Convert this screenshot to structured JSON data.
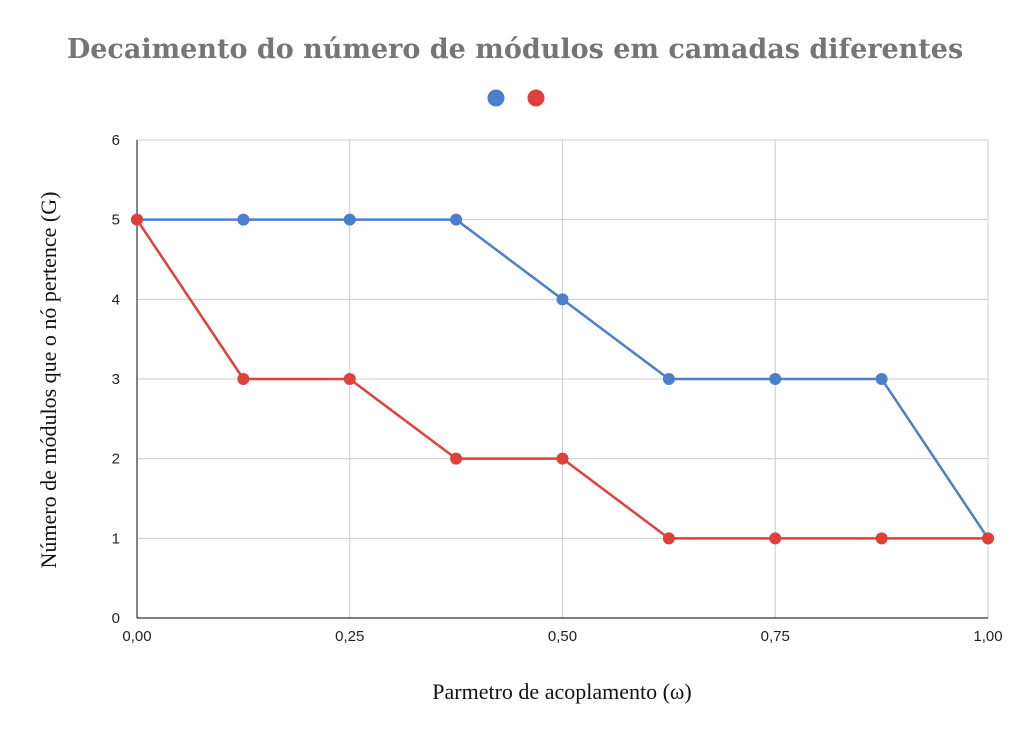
{
  "chart_data": {
    "type": "line",
    "title": "Decaimento do número de módulos em camadas diferentes",
    "xlabel": "Parmetro de acoplamento (ω)",
    "ylabel": "Número de módulos que o nó pertence (G)",
    "x": [
      0.0,
      0.125,
      0.25,
      0.375,
      0.5,
      0.625,
      0.75,
      0.875,
      1.0
    ],
    "xlim": [
      0,
      1
    ],
    "ylim": [
      0,
      6
    ],
    "x_ticks": [
      {
        "value": 0.0,
        "label": "0,00"
      },
      {
        "value": 0.25,
        "label": "0,25"
      },
      {
        "value": 0.5,
        "label": "0,50"
      },
      {
        "value": 0.75,
        "label": "0,75"
      },
      {
        "value": 1.0,
        "label": "1,00"
      }
    ],
    "y_ticks": [
      {
        "value": 0,
        "label": "0"
      },
      {
        "value": 1,
        "label": "1"
      },
      {
        "value": 2,
        "label": "2"
      },
      {
        "value": 3,
        "label": "3"
      },
      {
        "value": 4,
        "label": "4"
      },
      {
        "value": 5,
        "label": "5"
      },
      {
        "value": 6,
        "label": "6"
      }
    ],
    "grid": true,
    "legend_position": "top",
    "series": [
      {
        "color": "#4a7fcb",
        "values": [
          5,
          5,
          5,
          5,
          4,
          3,
          3,
          3,
          1
        ]
      },
      {
        "color": "#e0403a",
        "values": [
          5,
          3,
          3,
          2,
          2,
          1,
          1,
          1,
          1
        ]
      }
    ]
  }
}
